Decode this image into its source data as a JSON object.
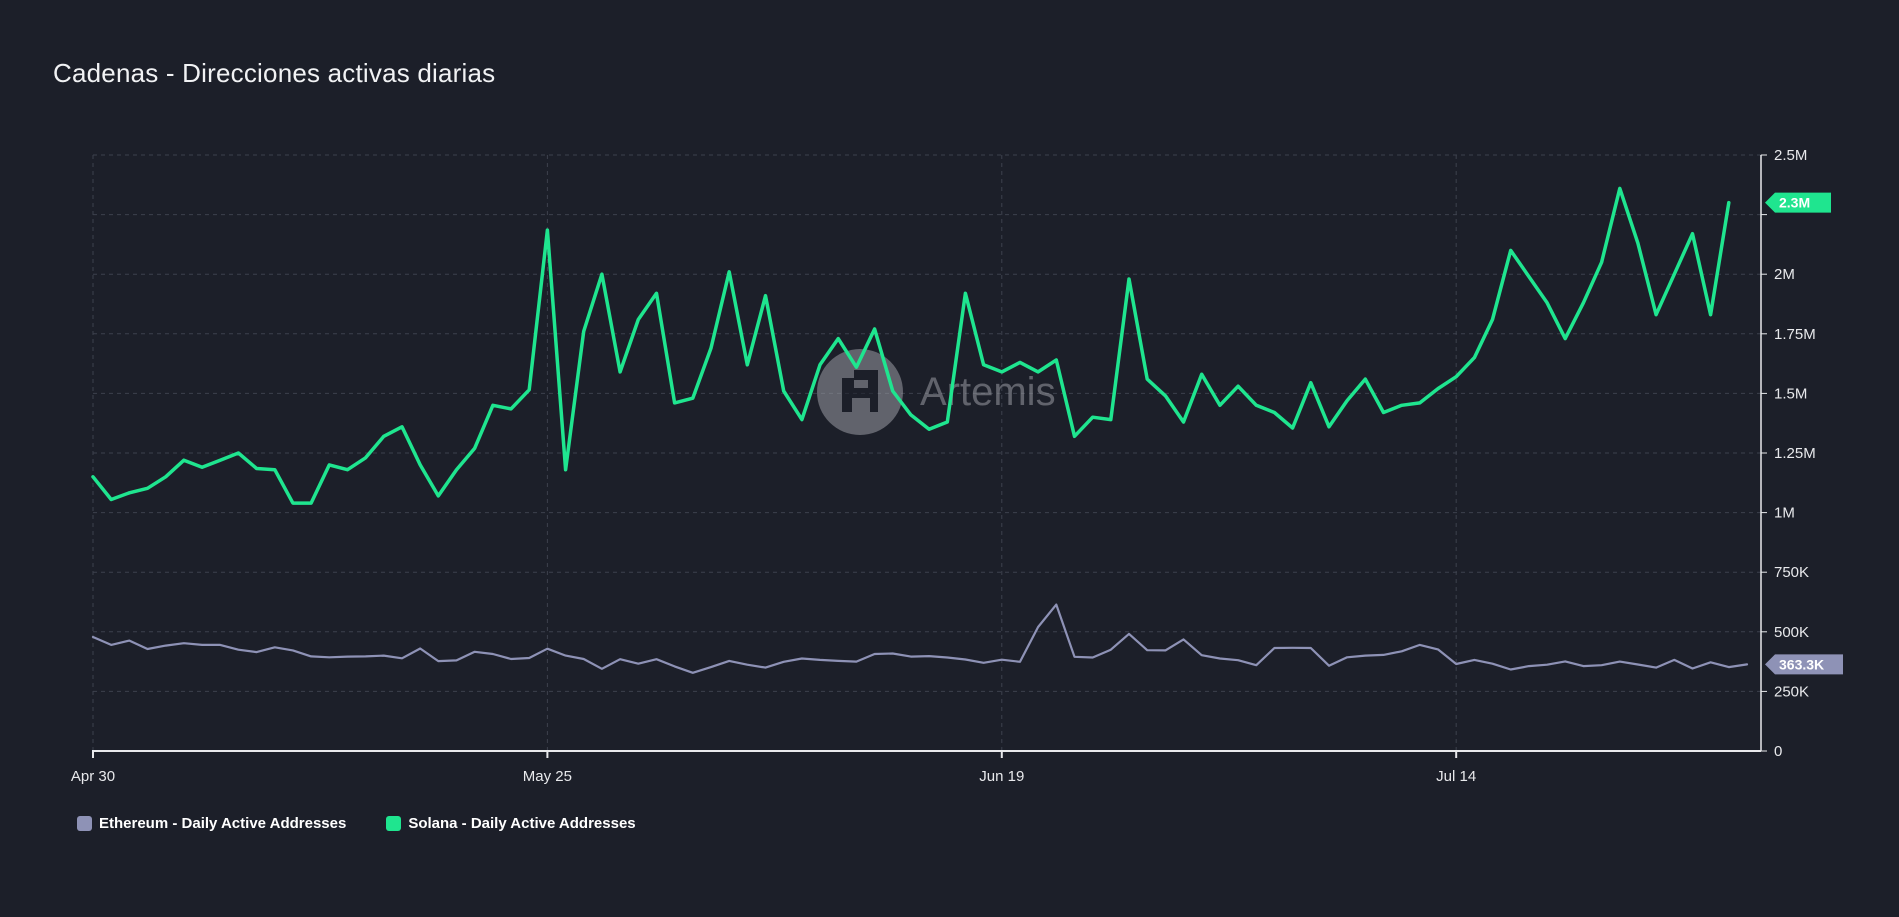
{
  "title": "Cadenas - Direcciones activas diarias",
  "watermark": "Artemis",
  "legend": {
    "ethereum": "Ethereum - Daily Active Addresses",
    "solana": "Solana - Daily Active Addresses"
  },
  "colors": {
    "background": "#1c1f29",
    "solana": "#1fe58f",
    "ethereum": "#8e92b6",
    "grid": "#3d414d",
    "axis": "#e8e9ec"
  },
  "chart_data": {
    "type": "line",
    "x_start": "2024-04-30",
    "x_tick_labels": [
      "Apr 30",
      "May 25",
      "Jun 19",
      "Jul 14"
    ],
    "x_tick_dates": [
      "2024-04-30",
      "2024-05-25",
      "2024-06-19",
      "2024-07-14"
    ],
    "y_axis_side": "right",
    "ylim": [
      0,
      2500000
    ],
    "y_ticks": [
      0,
      250000,
      500000,
      750000,
      1000000,
      1250000,
      1500000,
      1750000,
      2000000,
      2250000,
      2500000
    ],
    "y_tick_labels": [
      "0",
      "250K",
      "500K",
      "750K",
      "1M",
      "1.25M",
      "1.5M",
      "1.75M",
      "2M",
      "",
      "2.5M"
    ],
    "grid": true,
    "legend_position": "bottom-left",
    "series": [
      {
        "name": "Ethereum - Daily Active Addresses",
        "key": "ethereum",
        "last_label": "363.3K",
        "values": [
          478000,
          445000,
          463000,
          428000,
          442000,
          452000,
          445000,
          445000,
          425000,
          415000,
          435000,
          422000,
          397000,
          393000,
          396000,
          397000,
          400000,
          389000,
          430000,
          377000,
          380000,
          416000,
          407000,
          386000,
          390000,
          429000,
          400000,
          386000,
          345000,
          385000,
          366000,
          385000,
          355000,
          328000,
          352000,
          378000,
          362000,
          350000,
          374000,
          388000,
          382000,
          378000,
          375000,
          407000,
          409000,
          396000,
          398000,
          392000,
          384000,
          370000,
          383000,
          374000,
          520000,
          614000,
          395000,
          392000,
          425000,
          491000,
          423000,
          422000,
          468000,
          402000,
          388000,
          381000,
          360000,
          432000,
          433000,
          432000,
          358000,
          393000,
          400000,
          403000,
          418000,
          445000,
          426000,
          365000,
          382000,
          366000,
          342000,
          356000,
          362000,
          376000,
          356000,
          360000,
          375000,
          363000,
          350000,
          382000,
          346000,
          372000,
          352000,
          363300
        ]
      },
      {
        "name": "Solana - Daily Active Addresses",
        "key": "solana",
        "last_label": "2.3M",
        "values": [
          1150000,
          1055000,
          1083000,
          1102000,
          1150000,
          1220000,
          1190000,
          1220000,
          1250000,
          1185000,
          1180000,
          1040000,
          1040000,
          1200000,
          1180000,
          1230000,
          1320000,
          1360000,
          1200000,
          1070000,
          1180000,
          1270000,
          1450000,
          1435000,
          1515000,
          2185000,
          1180000,
          1760000,
          2000000,
          1590000,
          1810000,
          1920000,
          1460000,
          1480000,
          1690000,
          2010000,
          1620000,
          1910000,
          1510000,
          1390000,
          1620000,
          1730000,
          1610000,
          1770000,
          1510000,
          1410000,
          1350000,
          1380000,
          1920000,
          1620000,
          1590000,
          1630000,
          1590000,
          1640000,
          1320000,
          1400000,
          1390000,
          1980000,
          1560000,
          1490000,
          1380000,
          1580000,
          1450000,
          1530000,
          1450000,
          1420000,
          1355000,
          1545000,
          1360000,
          1470000,
          1560000,
          1420000,
          1450000,
          1460000,
          1520000,
          1570000,
          1650000,
          1810000,
          2100000,
          1990000,
          1880000,
          1730000,
          1880000,
          2050000,
          2360000,
          2130000,
          1830000,
          2000000,
          2170000,
          1830000,
          2300000
        ]
      }
    ]
  }
}
